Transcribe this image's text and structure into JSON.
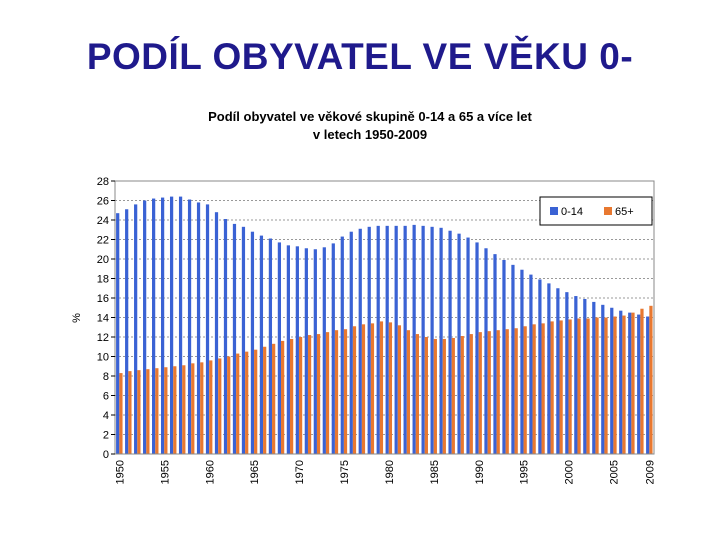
{
  "slide": {
    "title": "PODÍL OBYVATEL VE VĚKU 0-"
  },
  "chart_data": {
    "type": "bar",
    "title_line1": "Podíl obyvatel ve věkové skupině 0-14 a 65 a více let",
    "title_line2": "v letech 1950-2009",
    "ylabel": "%",
    "ylim": [
      0,
      28
    ],
    "yticks": [
      0,
      2,
      4,
      6,
      8,
      10,
      12,
      14,
      16,
      18,
      20,
      22,
      24,
      26,
      28
    ],
    "xtick_labels": [
      "1950",
      "1955",
      "1960",
      "1965",
      "1970",
      "1975",
      "1980",
      "1985",
      "1990",
      "1995",
      "2000",
      "2005",
      "2009"
    ],
    "x": [
      1950,
      1951,
      1952,
      1953,
      1954,
      1955,
      1956,
      1957,
      1958,
      1959,
      1960,
      1961,
      1962,
      1963,
      1964,
      1965,
      1966,
      1967,
      1968,
      1969,
      1970,
      1971,
      1972,
      1973,
      1974,
      1975,
      1976,
      1977,
      1978,
      1979,
      1980,
      1981,
      1982,
      1983,
      1984,
      1985,
      1986,
      1987,
      1988,
      1989,
      1990,
      1991,
      1992,
      1993,
      1994,
      1995,
      1996,
      1997,
      1998,
      1999,
      2000,
      2001,
      2002,
      2003,
      2004,
      2005,
      2006,
      2007,
      2008,
      2009
    ],
    "series": [
      {
        "name": "0-14",
        "color": "#3a62d4",
        "values": [
          24.7,
          25.1,
          25.6,
          26.0,
          26.2,
          26.3,
          26.4,
          26.4,
          26.1,
          25.8,
          25.6,
          24.8,
          24.1,
          23.6,
          23.3,
          22.8,
          22.4,
          22.1,
          21.7,
          21.4,
          21.3,
          21.1,
          21.0,
          21.2,
          21.6,
          22.3,
          22.8,
          23.1,
          23.3,
          23.4,
          23.4,
          23.4,
          23.4,
          23.5,
          23.4,
          23.3,
          23.2,
          22.9,
          22.6,
          22.2,
          21.7,
          21.1,
          20.5,
          19.9,
          19.4,
          18.9,
          18.4,
          17.9,
          17.5,
          17.0,
          16.6,
          16.2,
          15.9,
          15.6,
          15.3,
          15.0,
          14.7,
          14.5,
          14.3,
          14.1
        ]
      },
      {
        "name": "65+",
        "color": "#e87830",
        "values": [
          8.3,
          8.5,
          8.6,
          8.7,
          8.8,
          8.9,
          9.0,
          9.1,
          9.3,
          9.4,
          9.6,
          9.8,
          10.0,
          10.3,
          10.5,
          10.7,
          11.0,
          11.3,
          11.6,
          11.8,
          12.0,
          12.2,
          12.3,
          12.5,
          12.7,
          12.8,
          13.1,
          13.3,
          13.4,
          13.6,
          13.5,
          13.2,
          12.7,
          12.3,
          12.0,
          11.8,
          11.8,
          11.9,
          12.1,
          12.3,
          12.5,
          12.6,
          12.7,
          12.8,
          12.9,
          13.1,
          13.3,
          13.4,
          13.6,
          13.7,
          13.8,
          13.9,
          13.9,
          14.0,
          14.0,
          14.1,
          14.2,
          14.5,
          14.9,
          15.2
        ]
      }
    ],
    "legend": {
      "position": "top-right",
      "entries": [
        "0-14",
        "65+"
      ]
    },
    "grid": true,
    "plot_border_color": "#888888",
    "grid_color": "#999999"
  }
}
